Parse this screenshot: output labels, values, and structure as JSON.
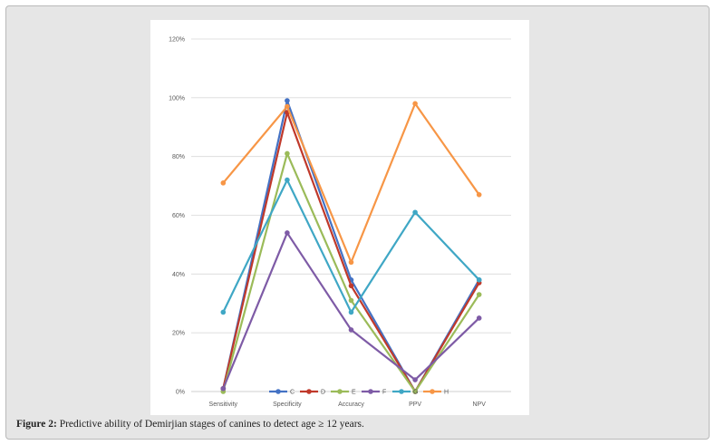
{
  "caption": {
    "label": "Figure 2:",
    "text": " Predictive ability of Demirjian stages of canines to detect age ≥ 12 years."
  },
  "chart_data": {
    "type": "line",
    "title": "",
    "xlabel": "",
    "ylabel": "",
    "categories": [
      "Sensitivity",
      "Specificity",
      "Accuracy",
      "PPV",
      "NPV"
    ],
    "ylim": [
      0,
      120
    ],
    "yticks": [
      0,
      20,
      40,
      60,
      80,
      100,
      120
    ],
    "ytick_labels": [
      "0%",
      "20%",
      "40%",
      "60%",
      "80%",
      "100%",
      "120%"
    ],
    "grid": true,
    "legend_position": "bottom",
    "series": [
      {
        "name": "C",
        "color": "#4472c4",
        "values": [
          1,
          99,
          38,
          0,
          38
        ]
      },
      {
        "name": "D",
        "color": "#c0392b",
        "values": [
          1,
          95,
          36,
          0,
          37
        ]
      },
      {
        "name": "E",
        "color": "#9bbb59",
        "values": [
          0,
          81,
          31,
          0,
          33
        ]
      },
      {
        "name": "F",
        "color": "#7e5ba6",
        "values": [
          1,
          54,
          21,
          4,
          25
        ]
      },
      {
        "name": "G",
        "color": "#3fa7c5",
        "values": [
          27,
          72,
          27,
          61,
          38
        ]
      },
      {
        "name": "H",
        "color": "#f79646",
        "values": [
          71,
          97,
          44,
          98,
          67
        ]
      }
    ]
  }
}
